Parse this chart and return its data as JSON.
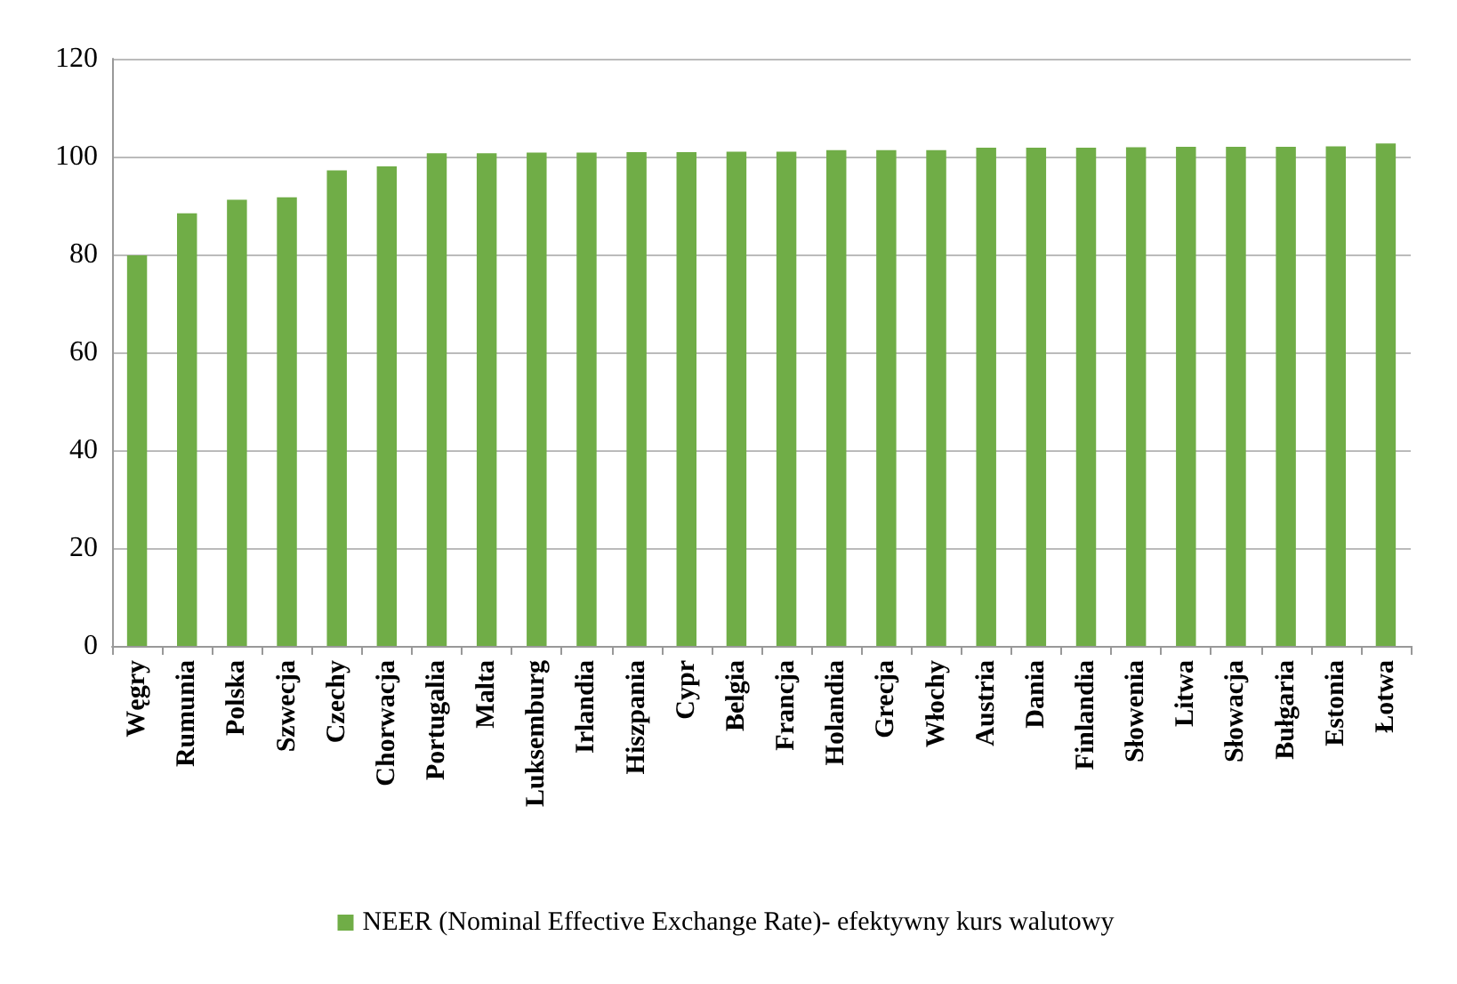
{
  "chart_data": {
    "type": "bar",
    "categories": [
      "Węgry",
      "Rumunia",
      "Polska",
      "Szwecja",
      "Czechy",
      "Chorwacja",
      "Portugalia",
      "Malta",
      "Luksemburg",
      "Irlandia",
      "Hiszpania",
      "Cypr",
      "Belgia",
      "Francja",
      "Holandia",
      "Grecja",
      "Włochy",
      "Austria",
      "Dania",
      "Finlandia",
      "Słowenia",
      "Litwa",
      "Słowacja",
      "Bułgaria",
      "Estonia",
      "Łotwa"
    ],
    "series": [
      {
        "name": "NEER (Nominal Effective Exchange Rate)- efektywny kurs walutowy",
        "color": "#70ad47",
        "values": [
          79.8,
          88.4,
          91.2,
          91.7,
          97.2,
          98.0,
          100.7,
          100.7,
          100.8,
          100.8,
          100.9,
          100.9,
          101.0,
          101.0,
          101.3,
          101.3,
          101.3,
          101.8,
          101.8,
          101.8,
          101.9,
          102.0,
          102.0,
          102.0,
          102.1,
          102.7
        ]
      }
    ],
    "ylim": [
      0,
      120
    ],
    "yticks": [
      0,
      20,
      40,
      60,
      80,
      100,
      120
    ],
    "grid": "y",
    "legend": "bottom"
  }
}
